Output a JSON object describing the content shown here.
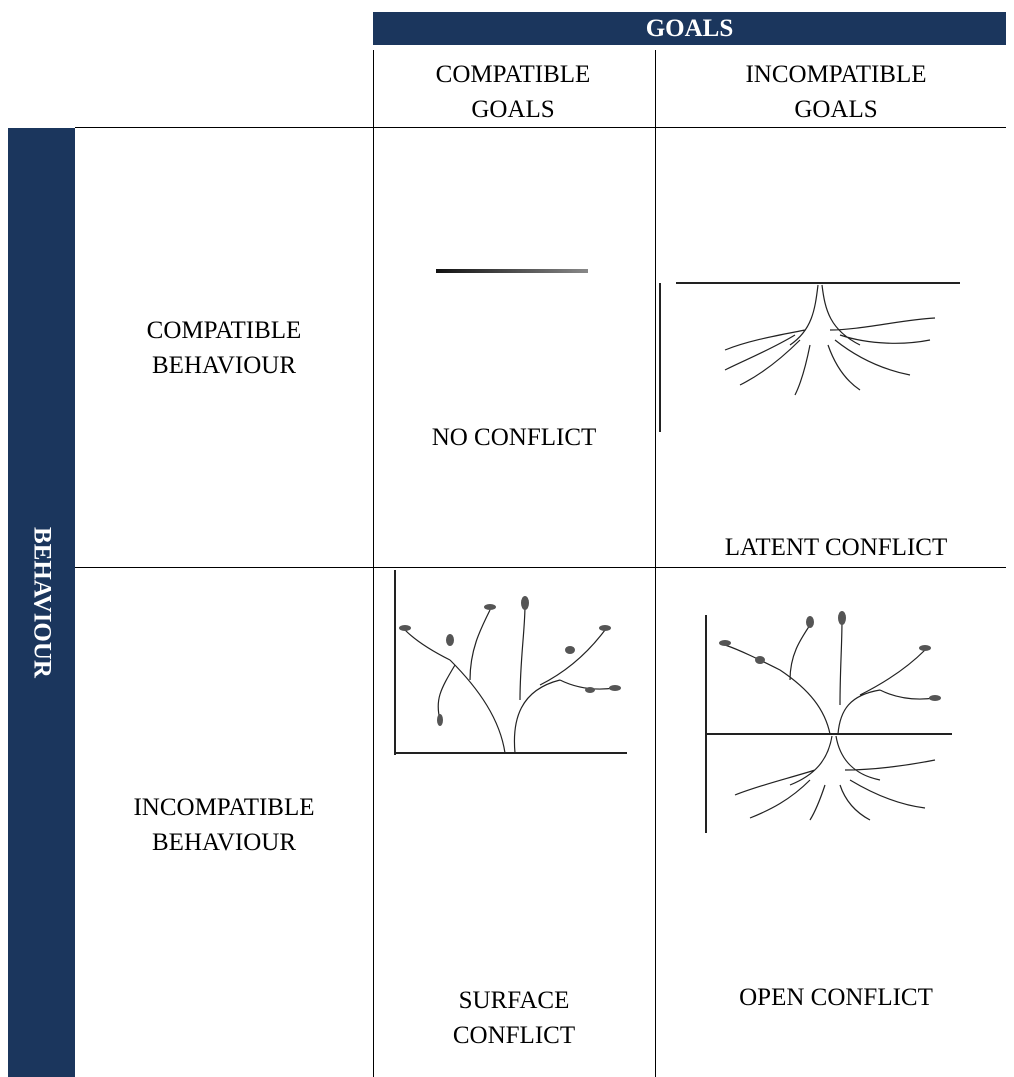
{
  "header": {
    "title": "GOALS"
  },
  "columns": [
    "COMPATIBLE GOALS",
    "INCOMPATIBLE GOALS"
  ],
  "side": {
    "title": "BEHAVIOUR"
  },
  "rows": [
    {
      "label": "COMPATIBLE BEHAVIOUR",
      "cells": [
        "NO CONFLICT",
        "LATENT CONFLICT"
      ]
    },
    {
      "label": "INCOMPATIBLE BEHAVIOUR",
      "cells": [
        "SURFACE CONFLICT",
        "OPEN CONFLICT"
      ]
    }
  ]
}
